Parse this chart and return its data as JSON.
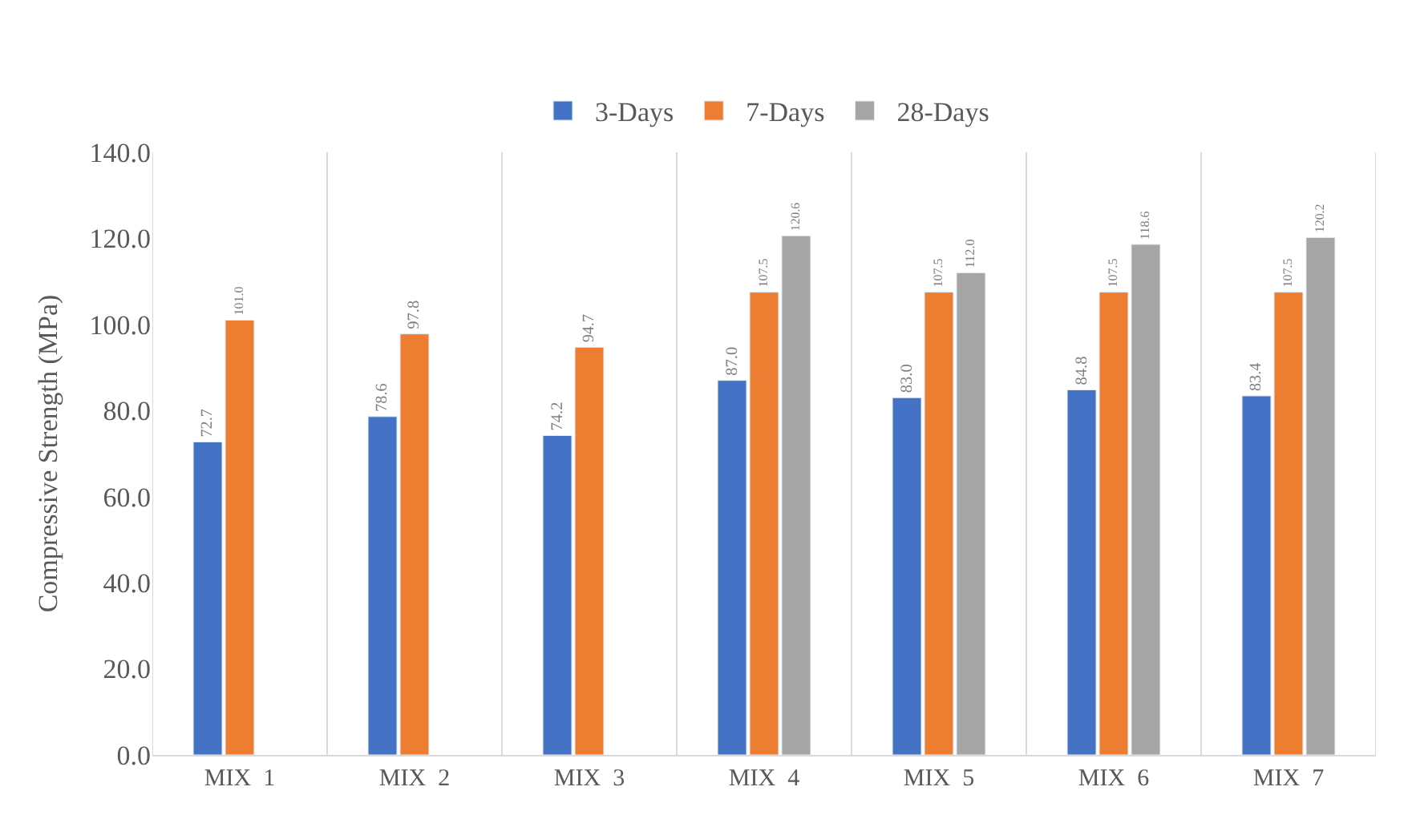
{
  "chart_data": {
    "type": "bar",
    "ylabel": "Compressive Strength (MPa)",
    "categories": [
      "MIX  1",
      "MIX  2",
      "MIX  3",
      "MIX  4",
      "MIX  5",
      "MIX  6",
      "MIX  7"
    ],
    "series": [
      {
        "name": "3-Days",
        "color": "#4472c4",
        "values": [
          72.7,
          78.6,
          74.2,
          87.0,
          83.0,
          84.8,
          83.4
        ],
        "value_labels": [
          "72.7",
          "78.6",
          "74.2",
          "87.0",
          "83.0",
          "84.8",
          "83.4"
        ]
      },
      {
        "name": "7-Days",
        "color": "#ed7d31",
        "values": [
          101.0,
          97.8,
          94.7,
          107.5,
          107.5,
          107.5,
          107.5
        ],
        "value_labels": [
          "101.0",
          "97.8",
          "94.7",
          "107.5",
          "107.5",
          "107.5",
          "107.5"
        ]
      },
      {
        "name": "28-Days",
        "color": "#a5a5a5",
        "values": [
          null,
          null,
          null,
          120.6,
          112.0,
          118.6,
          120.2
        ],
        "value_labels": [
          null,
          null,
          null,
          "120.6",
          "112.0",
          "118.6",
          "120.2"
        ]
      }
    ],
    "ylim": [
      0,
      140
    ],
    "yticks": [
      {
        "value": 0,
        "label": "0.0"
      },
      {
        "value": 20,
        "label": "20.0"
      },
      {
        "value": 40,
        "label": "40.0"
      },
      {
        "value": 60,
        "label": "60.0"
      },
      {
        "value": 80,
        "label": "80.0"
      },
      {
        "value": 100,
        "label": "100.0"
      },
      {
        "value": 120,
        "label": "120.0"
      },
      {
        "value": 140,
        "label": "140.0"
      }
    ],
    "grid": "x",
    "legend": "top"
  }
}
